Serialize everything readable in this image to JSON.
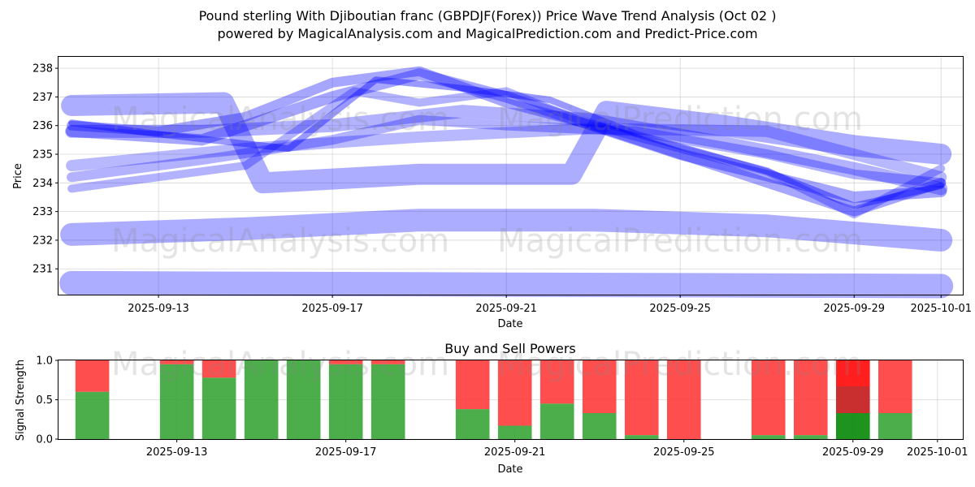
{
  "chart_data": [
    {
      "type": "line",
      "title_line1": "Pound sterling With Djiboutian franc (GBPDJF(Forex)) Price Wave Trend Analysis (Oct 02 )",
      "title_line2": "powered by MagicalAnalysis.com and MagicalPrediction.com and Predict-Price.com",
      "xlabel": "Date",
      "ylabel": "Price",
      "xlim_day_offset": [
        -0.3,
        20.5
      ],
      "ylim": [
        230.1,
        238.4
      ],
      "y_ticks": [
        231,
        232,
        233,
        234,
        235,
        236,
        237,
        238
      ],
      "x_ticks": [
        {
          "day": 2,
          "label": "2025-09-13"
        },
        {
          "day": 6,
          "label": "2025-09-17"
        },
        {
          "day": 10,
          "label": "2025-09-21"
        },
        {
          "day": 14,
          "label": "2025-09-25"
        },
        {
          "day": 18,
          "label": "2025-09-29"
        },
        {
          "day": 20,
          "label": "2025-10-01"
        }
      ],
      "day_zero": "2025-09-11",
      "grid": true,
      "color": "#0000ff",
      "waves": [
        {
          "name": "wave-1",
          "x": [
            0,
            20
          ],
          "values": [
            230.5,
            230.4
          ],
          "width": 30,
          "alpha": 0.32
        },
        {
          "name": "wave-2",
          "x": [
            0,
            4,
            8,
            12,
            16,
            20
          ],
          "values": [
            232.2,
            232.4,
            232.7,
            232.7,
            232.5,
            232.0
          ],
          "width": 28,
          "alpha": 0.32
        },
        {
          "name": "wave-3",
          "x": [
            0,
            3.5,
            4.4,
            8,
            10,
            11.5,
            12.3,
            15,
            18,
            20
          ],
          "values": [
            236.7,
            236.8,
            234.0,
            234.3,
            234.3,
            234.3,
            236.5,
            236.0,
            235.3,
            235.0
          ],
          "width": 26,
          "alpha": 0.32
        },
        {
          "name": "wave-4",
          "x": [
            0,
            3,
            6,
            8,
            10,
            12,
            14,
            18,
            20
          ],
          "values": [
            235.8,
            235.5,
            237.0,
            237.8,
            237.0,
            236.0,
            235.0,
            233.5,
            233.7
          ],
          "width": 14,
          "alpha": 0.35
        },
        {
          "name": "wave-5",
          "x": [
            0,
            2,
            4,
            6,
            8,
            10,
            12,
            14,
            16,
            18,
            20
          ],
          "values": [
            236.0,
            235.8,
            236.3,
            237.5,
            237.9,
            236.8,
            236.0,
            235.0,
            234.0,
            233.0,
            234.0
          ],
          "width": 12,
          "alpha": 0.35
        },
        {
          "name": "wave-6",
          "x": [
            0,
            3,
            6,
            8,
            10,
            13,
            16,
            18,
            20
          ],
          "values": [
            234.2,
            234.8,
            235.5,
            236.2,
            236.0,
            235.8,
            235.0,
            234.3,
            234.0
          ],
          "width": 12,
          "alpha": 0.3
        },
        {
          "name": "wave-7",
          "x": [
            0,
            4,
            6.5,
            8,
            10,
            12,
            14,
            16,
            18,
            20
          ],
          "values": [
            233.8,
            234.6,
            237.2,
            236.8,
            237.2,
            236.0,
            235.2,
            234.4,
            232.9,
            234.5
          ],
          "width": 10,
          "alpha": 0.3
        },
        {
          "name": "wave-8",
          "x": [
            0,
            3,
            6,
            9,
            12,
            15,
            18,
            20
          ],
          "values": [
            235.8,
            235.8,
            236.0,
            236.5,
            236.2,
            235.4,
            234.5,
            233.8
          ],
          "width": 16,
          "alpha": 0.3
        },
        {
          "name": "wave-9",
          "x": [
            0,
            4,
            8,
            12,
            16,
            18.5,
            20
          ],
          "values": [
            234.6,
            235.2,
            235.6,
            235.9,
            235.8,
            234.8,
            234.2
          ],
          "width": 14,
          "alpha": 0.28
        },
        {
          "name": "wave-10",
          "x": [
            0,
            2,
            5,
            7,
            9,
            11,
            13,
            16,
            18,
            20
          ],
          "values": [
            236.1,
            235.7,
            235.2,
            237.6,
            237.3,
            236.9,
            235.7,
            234.4,
            233.2,
            233.9
          ],
          "width": 8,
          "alpha": 0.4
        }
      ]
    },
    {
      "type": "bar",
      "title": "Buy and Sell Powers",
      "xlabel": "Date",
      "ylabel": "Signal Strength",
      "ylim": [
        0,
        1
      ],
      "y_ticks": [
        {
          "v": 0,
          "label": "0.0"
        },
        {
          "v": 0.5,
          "label": "0.5"
        },
        {
          "v": 1,
          "label": "1.0"
        }
      ],
      "xlim_day_offset": [
        -0.8,
        20.6
      ],
      "x_ticks": [
        {
          "day": 2,
          "label": "2025-09-13"
        },
        {
          "day": 6,
          "label": "2025-09-17"
        },
        {
          "day": 10,
          "label": "2025-09-21"
        },
        {
          "day": 14,
          "label": "2025-09-25"
        },
        {
          "day": 18,
          "label": "2025-09-29"
        },
        {
          "day": 20,
          "label": "2025-10-01"
        }
      ],
      "grid": true,
      "series": [
        {
          "name": "Buy",
          "color": "#2ca02c"
        },
        {
          "name": "Sell",
          "color": "#ff3b3b"
        }
      ],
      "bars": [
        {
          "day": 0,
          "buy": 0.6
        },
        {
          "day": 2,
          "buy": 0.95
        },
        {
          "day": 3,
          "buy": 0.78
        },
        {
          "day": 4,
          "buy": 1.0
        },
        {
          "day": 5,
          "buy": 1.0
        },
        {
          "day": 6,
          "buy": 0.95
        },
        {
          "day": 7,
          "buy": 0.95
        },
        {
          "day": 9,
          "buy": 0.38
        },
        {
          "day": 10,
          "buy": 0.17
        },
        {
          "day": 11,
          "buy": 0.45
        },
        {
          "day": 12,
          "buy": 0.33
        },
        {
          "day": 13,
          "buy": 0.05
        },
        {
          "day": 14,
          "buy": 0.0
        },
        {
          "day": 16,
          "buy": 0.05
        },
        {
          "day": 17,
          "buy": 0.05
        },
        {
          "day": 18,
          "buy": 0.33,
          "extra_layers": true
        },
        {
          "day": 19,
          "buy": 0.33
        }
      ]
    }
  ],
  "watermarks": [
    "MagicalAnalysis.com",
    "MagicalPrediction.com"
  ]
}
